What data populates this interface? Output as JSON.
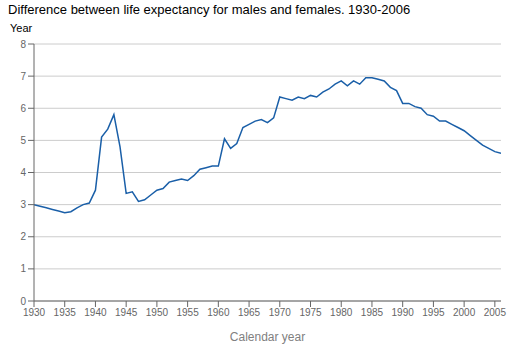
{
  "chart_data": {
    "type": "line",
    "title": "Difference between life expectancy for males and females. 1930-2006",
    "xlabel": "Calendar year",
    "ylabel": "Year",
    "x": [
      1930,
      1931,
      1932,
      1933,
      1934,
      1935,
      1936,
      1937,
      1938,
      1939,
      1940,
      1941,
      1942,
      1943,
      1944,
      1945,
      1946,
      1947,
      1948,
      1949,
      1950,
      1951,
      1952,
      1953,
      1954,
      1955,
      1956,
      1957,
      1958,
      1959,
      1960,
      1961,
      1962,
      1963,
      1964,
      1965,
      1966,
      1967,
      1968,
      1969,
      1970,
      1971,
      1972,
      1973,
      1974,
      1975,
      1976,
      1977,
      1978,
      1979,
      1980,
      1981,
      1982,
      1983,
      1984,
      1985,
      1986,
      1987,
      1988,
      1989,
      1990,
      1991,
      1992,
      1993,
      1994,
      1995,
      1996,
      1997,
      1998,
      1999,
      2000,
      2001,
      2002,
      2003,
      2004,
      2005,
      2006
    ],
    "values": [
      3.0,
      2.95,
      2.9,
      2.85,
      2.8,
      2.75,
      2.78,
      2.9,
      3.0,
      3.05,
      3.45,
      5.1,
      5.35,
      5.8,
      4.8,
      3.35,
      3.4,
      3.1,
      3.15,
      3.3,
      3.45,
      3.5,
      3.7,
      3.75,
      3.8,
      3.75,
      3.9,
      4.1,
      4.15,
      4.2,
      4.2,
      5.05,
      4.75,
      4.9,
      5.4,
      5.5,
      5.6,
      5.65,
      5.55,
      5.7,
      6.35,
      6.3,
      6.25,
      6.35,
      6.3,
      6.4,
      6.35,
      6.5,
      6.6,
      6.75,
      6.85,
      6.7,
      6.85,
      6.75,
      6.95,
      6.95,
      6.9,
      6.85,
      6.65,
      6.55,
      6.15,
      6.15,
      6.05,
      6.0,
      5.8,
      5.75,
      5.6,
      5.6,
      5.5,
      5.4,
      5.3,
      5.15,
      5.0,
      4.85,
      4.75,
      4.65,
      4.6
    ],
    "color": "#1a5fa8",
    "xlim": [
      1930,
      2006
    ],
    "xticks": [
      1930,
      1935,
      1940,
      1945,
      1950,
      1955,
      1960,
      1965,
      1970,
      1975,
      1980,
      1985,
      1990,
      1995,
      2000,
      2005
    ],
    "ylim": [
      0,
      8
    ],
    "yticks": [
      0,
      1,
      2,
      3,
      4,
      5,
      6,
      7,
      8
    ],
    "grid": true
  }
}
